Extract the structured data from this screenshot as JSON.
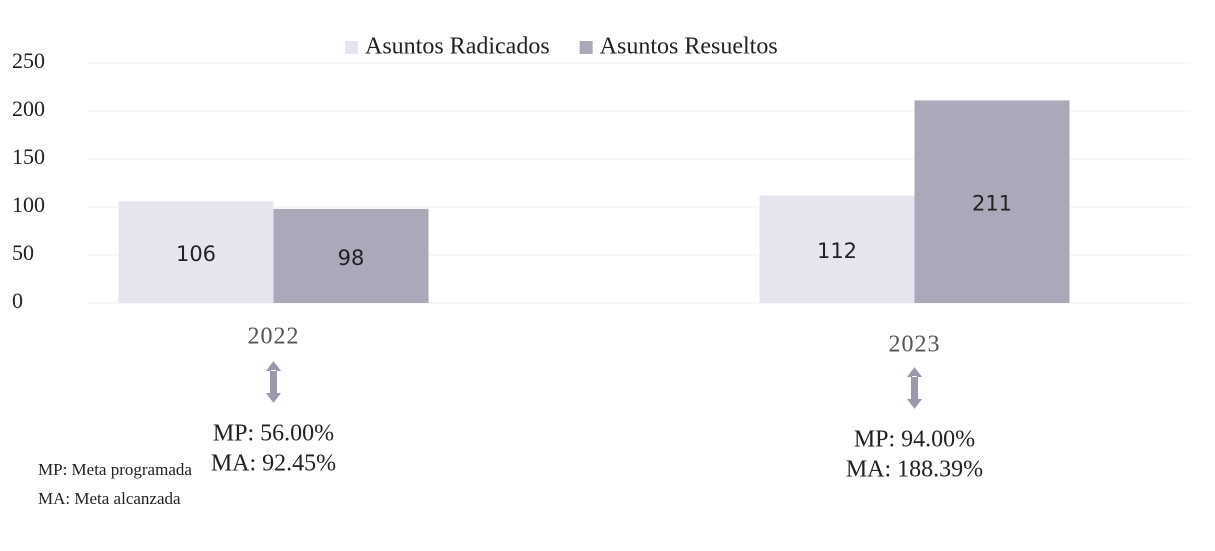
{
  "chart_data": {
    "type": "bar",
    "categories": [
      "2022",
      "2023"
    ],
    "series": [
      {
        "name": "Asuntos Radicados",
        "color": "#e6e5ef",
        "values": [
          106,
          112
        ]
      },
      {
        "name": "Asuntos Resueltos",
        "color": "#aaa8b9",
        "values": [
          98,
          211
        ]
      }
    ],
    "ylim": [
      0,
      250
    ],
    "yticks": [
      0,
      50,
      100,
      150,
      200,
      250
    ],
    "grid": true,
    "annotations": [
      [
        "MP: 56.00%",
        "MA: 92.45%"
      ],
      [
        "MP: 94.00%",
        "MA: 188.39%"
      ]
    ],
    "notes": [
      "MP: Meta programada",
      "MA: Meta alcanzada"
    ]
  }
}
